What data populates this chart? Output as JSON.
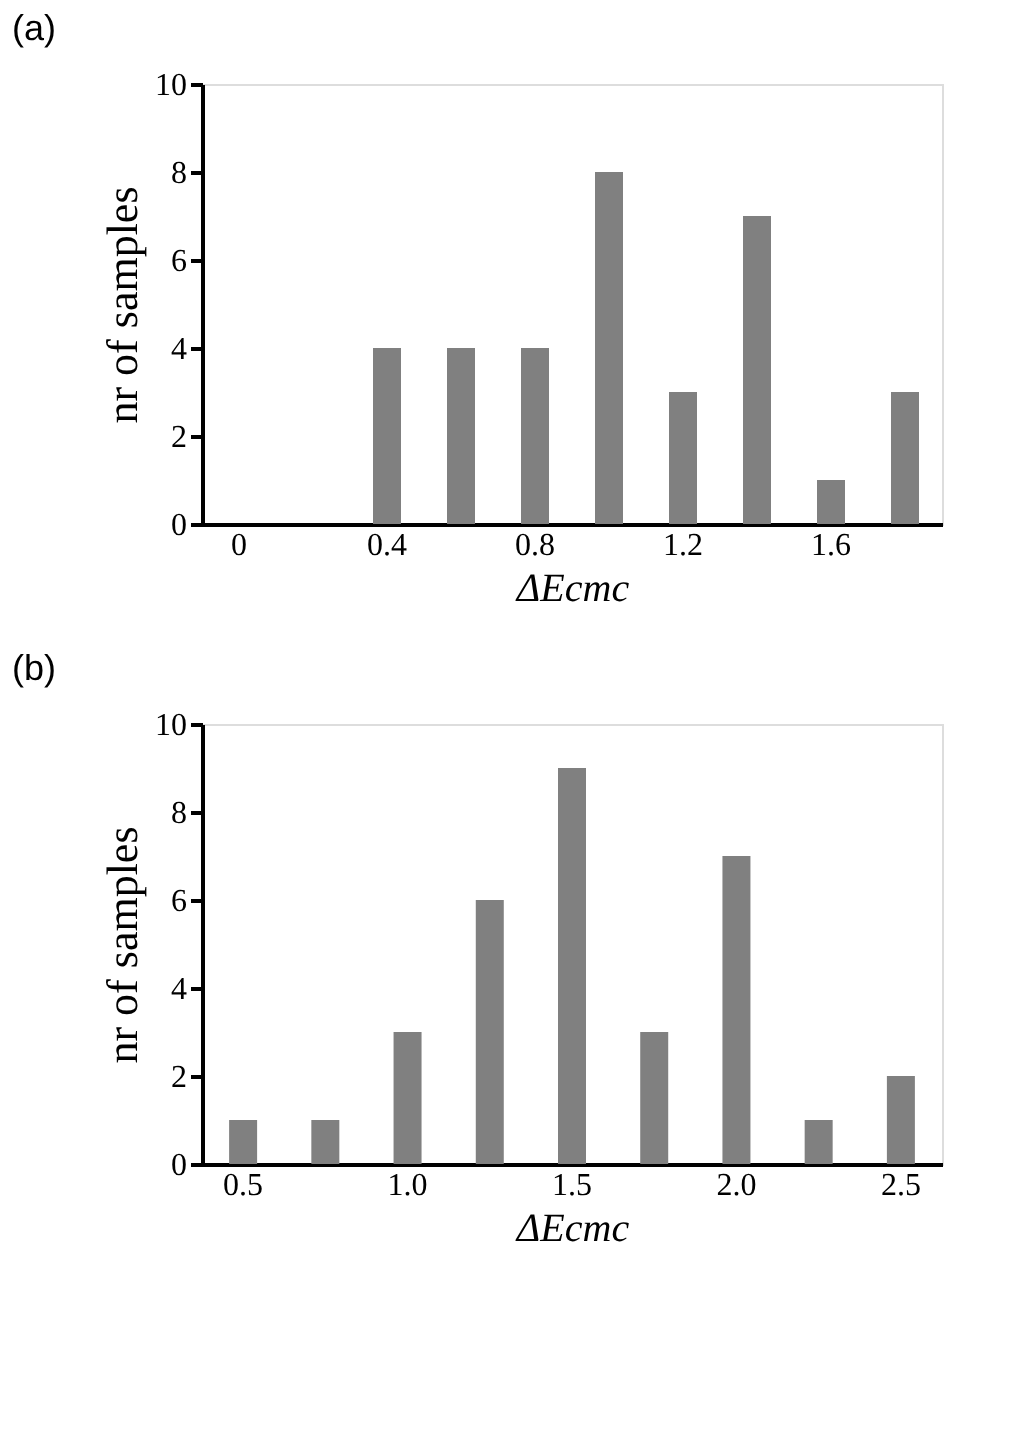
{
  "chart_data": [
    {
      "type": "bar",
      "title": "(a)",
      "categories": [
        "0",
        null,
        "0.4",
        null,
        "0.8",
        null,
        "1.2",
        null,
        "1.6",
        null
      ],
      "values": [
        0,
        0,
        4,
        4,
        4,
        8,
        3,
        7,
        1,
        3
      ],
      "color": "#808080",
      "xlabel": "ΔEcmc",
      "ylabel": "nr of samples",
      "ylim": [
        0,
        10
      ],
      "yticks": [
        0,
        2,
        4,
        6,
        8,
        10
      ],
      "grid": false
    },
    {
      "type": "bar",
      "title": "(b)",
      "categories": [
        "0.5",
        null,
        "1.0",
        null,
        "1.5",
        null,
        "2.0",
        null,
        "2.5"
      ],
      "values": [
        1,
        1,
        3,
        6,
        9,
        3,
        7,
        1,
        2
      ],
      "color": "#808080",
      "xlabel": "ΔEcmc",
      "ylabel": "nr of samples",
      "ylim": [
        0,
        10
      ],
      "yticks": [
        0,
        2,
        4,
        6,
        8,
        10
      ],
      "grid": false
    }
  ]
}
